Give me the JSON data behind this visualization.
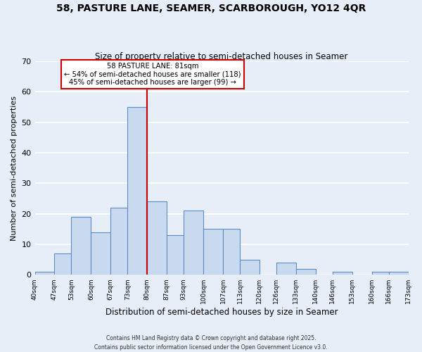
{
  "title": "58, PASTURE LANE, SEAMER, SCARBOROUGH, YO12 4QR",
  "subtitle": "Size of property relative to semi-detached houses in Seamer",
  "xlabel": "Distribution of semi-detached houses by size in Seamer",
  "ylabel": "Number of semi-detached properties",
  "bin_edges": [
    40,
    47,
    53,
    60,
    67,
    73,
    80,
    87,
    93,
    100,
    107,
    113,
    120,
    126,
    133,
    140,
    146,
    153,
    160,
    166,
    173
  ],
  "bar_heights": [
    1,
    7,
    19,
    14,
    22,
    55,
    24,
    13,
    21,
    15,
    15,
    5,
    0,
    4,
    2,
    0,
    1,
    0,
    1,
    1
  ],
  "bar_color": "#c8d9f0",
  "bar_edge_color": "#5b8ec4",
  "property_line_x": 80,
  "property_line_color": "#cc0000",
  "annotation_title": "58 PASTURE LANE: 81sqm",
  "annotation_line1": "← 54% of semi-detached houses are smaller (118)",
  "annotation_line2": "45% of semi-detached houses are larger (99) →",
  "annotation_box_color": "#ffffff",
  "annotation_border_color": "#cc0000",
  "ylim": [
    0,
    70
  ],
  "yticks": [
    0,
    10,
    20,
    30,
    40,
    50,
    60,
    70
  ],
  "background_color": "#e8eef8",
  "grid_color": "#ffffff",
  "footer_line1": "Contains HM Land Registry data © Crown copyright and database right 2025.",
  "footer_line2": "Contains public sector information licensed under the Open Government Licence v3.0."
}
